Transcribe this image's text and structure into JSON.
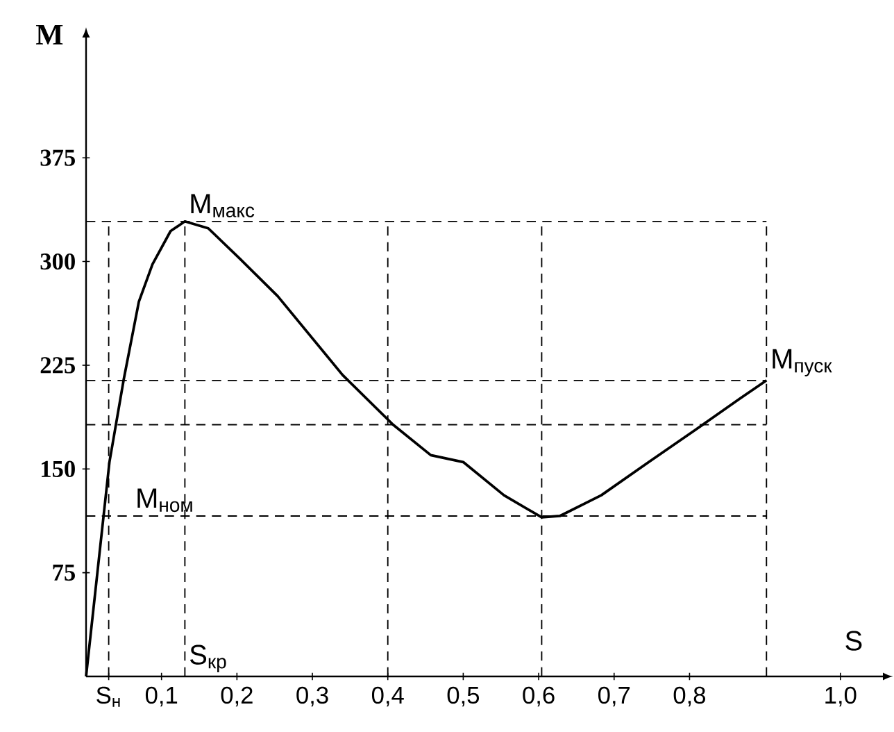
{
  "chart_data": {
    "type": "line",
    "xlabel": "S",
    "ylabel": "M",
    "x": [
      0,
      0.031,
      0.05,
      0.07,
      0.088,
      0.112,
      0.131,
      0.162,
      0.204,
      0.254,
      0.34,
      0.407,
      0.457,
      0.5,
      0.554,
      0.604,
      0.628,
      0.683,
      0.746,
      0.807,
      0.867,
      0.902
    ],
    "series": [
      {
        "color": "#000000",
        "values": [
          0,
          155,
          215,
          271,
          298,
          322,
          329,
          324,
          302,
          275,
          218,
          182,
          160,
          155,
          131,
          115,
          116,
          131,
          155,
          178,
          201,
          214
        ]
      }
    ],
    "xlim": [
      0,
      1.06
    ],
    "ylim": [
      0,
      464
    ],
    "xticks": [
      {
        "value": 0.03,
        "label": "S$_{н}$"
      },
      {
        "value": 0.1,
        "label": "0,1"
      },
      {
        "value": 0.2,
        "label": "0,2"
      },
      {
        "value": 0.3,
        "label": "0,3"
      },
      {
        "value": 0.4,
        "label": "0,4"
      },
      {
        "value": 0.5,
        "label": "0,5"
      },
      {
        "value": 0.6,
        "label": "0,6"
      },
      {
        "value": 0.7,
        "label": "0,7"
      },
      {
        "value": 0.8,
        "label": "0,8"
      },
      {
        "value": 1.0,
        "label": "1,0"
      }
    ],
    "yticks": [
      75,
      150,
      225,
      300,
      375
    ],
    "ref_lines": [
      {
        "axis": "y",
        "value": 329,
        "line_style": "dashed"
      },
      {
        "axis": "y",
        "value": 214,
        "line_style": "dashed"
      },
      {
        "axis": "y",
        "value": 182,
        "line_style": "dashed"
      },
      {
        "axis": "y",
        "value": 116,
        "line_style": "dashed"
      },
      {
        "axis": "x",
        "value": 0.03,
        "line_style": "dashed"
      },
      {
        "axis": "x",
        "value": 0.131,
        "line_style": "dashed"
      },
      {
        "axis": "x",
        "value": 0.4,
        "line_style": "dashed"
      },
      {
        "axis": "x",
        "value": 0.604,
        "line_style": "dashed"
      },
      {
        "axis": "x",
        "value": 0.902,
        "line_style": "dashed"
      }
    ],
    "annotations": [
      {
        "text": "M$_{макс}$",
        "x": 0.131,
        "y": 329
      },
      {
        "text": "M$_{пуск}$",
        "x": 0.902,
        "y": 214
      },
      {
        "text": "M$_{ном}$",
        "x": 0.06,
        "y": 116
      },
      {
        "text": "S$_{кр}$",
        "x": 0.131,
        "y": 0
      }
    ],
    "grid": false
  }
}
